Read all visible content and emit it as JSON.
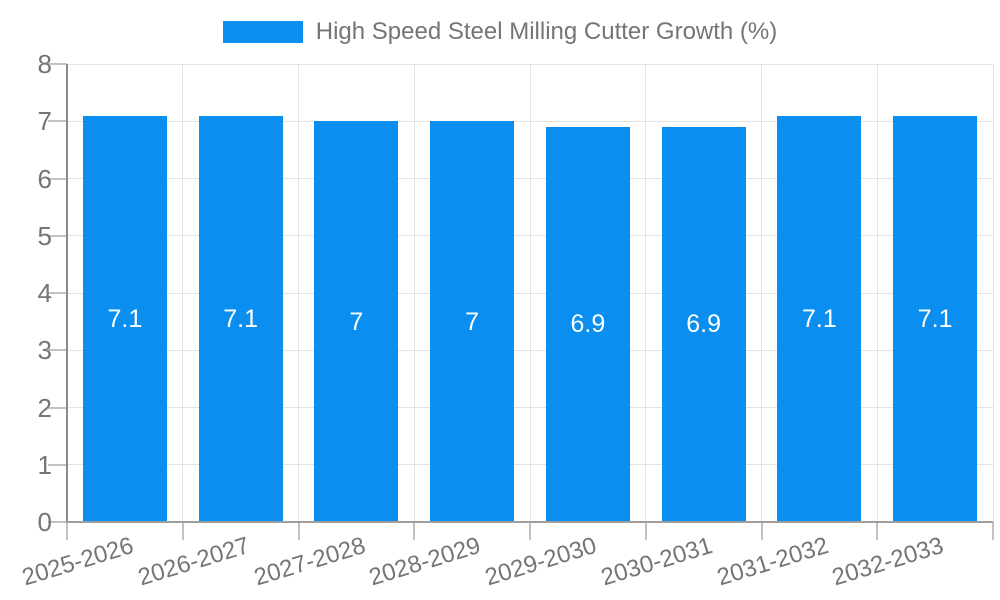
{
  "chart_data": {
    "type": "bar",
    "title": "High Speed Steel Milling Cutter Growth (%)",
    "categories": [
      "2025-2026",
      "2026-2027",
      "2027-2028",
      "2028-2029",
      "2029-2030",
      "2030-2031",
      "2031-2032",
      "2032-2033"
    ],
    "values": [
      7.1,
      7.1,
      7,
      7,
      6.9,
      6.9,
      7.1,
      7.1
    ],
    "value_labels": [
      "7.1",
      "7.1",
      "7",
      "7",
      "6.9",
      "6.9",
      "7.1",
      "7.1"
    ],
    "xlabel": "",
    "ylabel": "",
    "ylim": [
      0,
      8
    ],
    "yticks": [
      0,
      1,
      2,
      3,
      4,
      5,
      6,
      7,
      8
    ],
    "grid": true,
    "legend_position": "top",
    "bar_color": "#0a8ff0",
    "value_label_color": "#ffffff",
    "axis_text_color": "#757575",
    "gridline_color": "#e3e3e3",
    "tick_color": "#c2c2c2",
    "y_axis_color": "#8a8a8a",
    "x_axis_color": "#9e9e9e"
  }
}
